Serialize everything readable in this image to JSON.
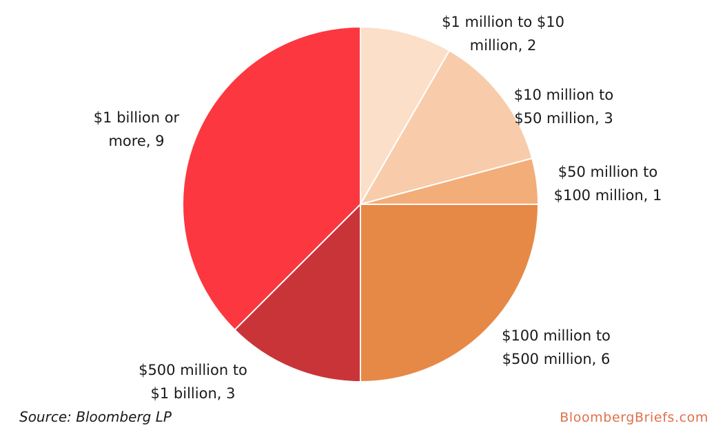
{
  "chart_data": {
    "type": "pie",
    "start": "top, clockwise",
    "slices": [
      {
        "label_lines": [
          "$1 million to $10",
          "million, 2"
        ],
        "value": 2,
        "color": "#fbdfc8"
      },
      {
        "label_lines": [
          "$10 million to",
          "$50 million, 3"
        ],
        "value": 3,
        "color": "#f8ccaa"
      },
      {
        "label_lines": [
          "$50 million to",
          "$100 million, 1"
        ],
        "value": 1,
        "color": "#f3ad78"
      },
      {
        "label_lines": [
          "$100 million to",
          "$500 million, 6"
        ],
        "value": 6,
        "color": "#e68946"
      },
      {
        "label_lines": [
          "$500 million to",
          "$1 billion, 3"
        ],
        "value": 3,
        "color": "#c93438"
      },
      {
        "label_lines": [
          "$1 billion or",
          "more, 9"
        ],
        "value": 9,
        "color": "#fc373f"
      }
    ]
  },
  "footer": {
    "source": "Source: Bloomberg LP",
    "brand": "BloombergBriefs.com"
  }
}
